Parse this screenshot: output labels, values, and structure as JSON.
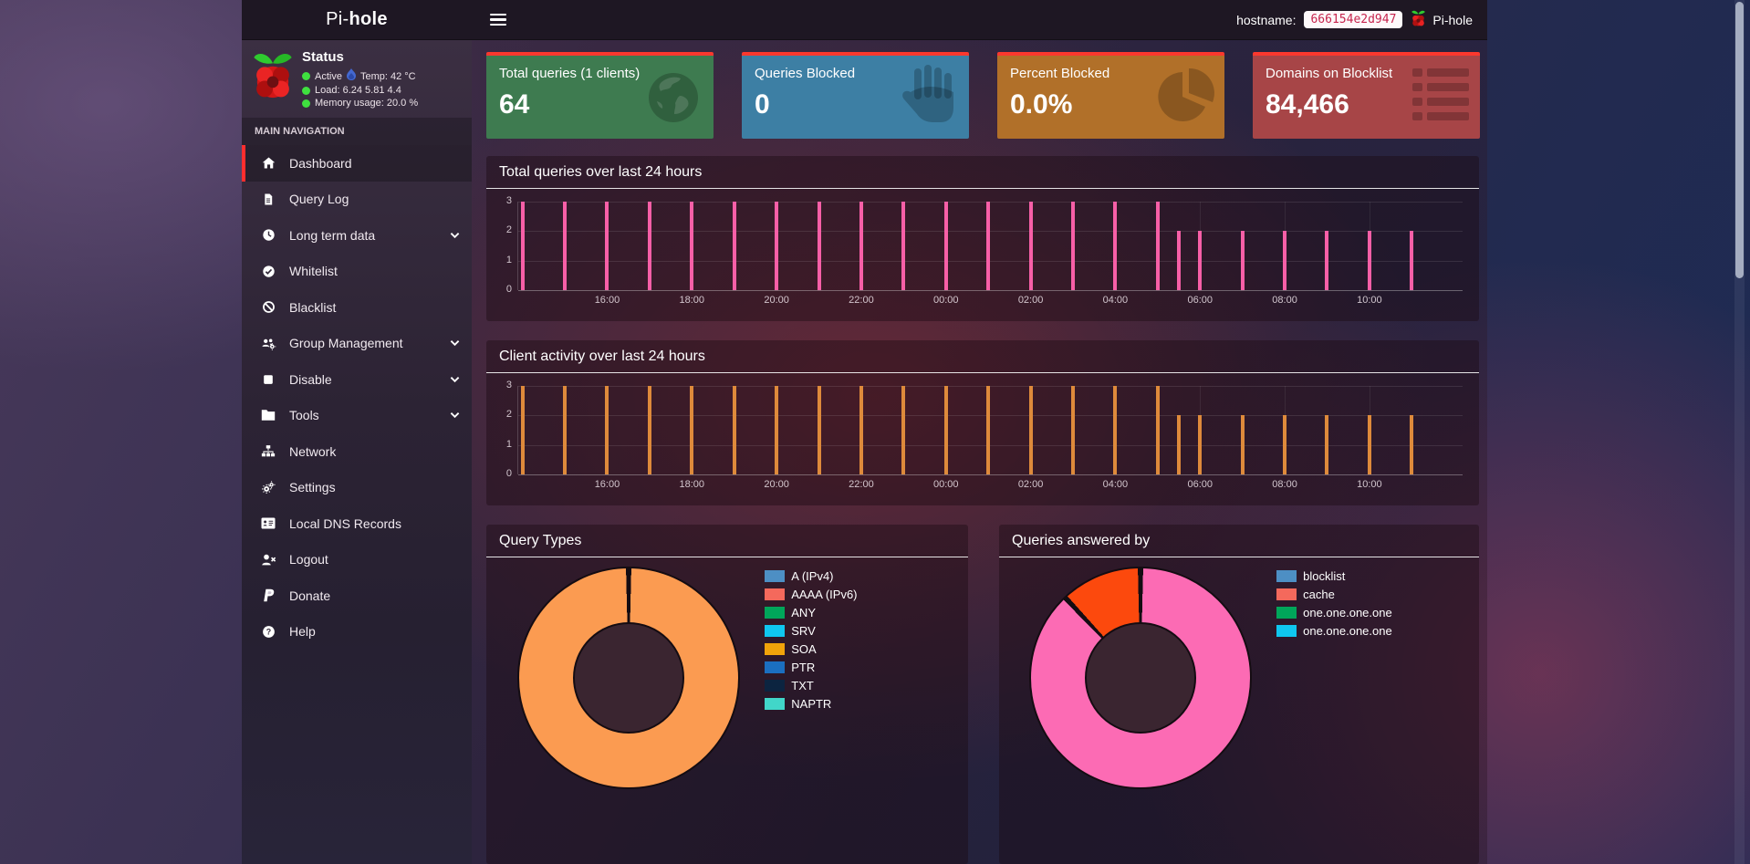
{
  "header": {
    "brand_prefix": "Pi-",
    "brand_suffix": "hole",
    "hostname_label": "hostname:",
    "hostname_value": "666154e2d947",
    "user_label": "Pi-hole"
  },
  "status": {
    "title": "Status",
    "active": "Active",
    "temp": "Temp: 42 °C",
    "load": "Load: 6.24  5.81  4.4",
    "memory": "Memory usage:  20.0 %"
  },
  "sidebar": {
    "section_label": "MAIN NAVIGATION",
    "items": [
      {
        "label": "Dashboard",
        "icon": "home",
        "active": true,
        "chevron": false
      },
      {
        "label": "Query Log",
        "icon": "file",
        "active": false,
        "chevron": false
      },
      {
        "label": "Long term data",
        "icon": "clock",
        "active": false,
        "chevron": true
      },
      {
        "label": "Whitelist",
        "icon": "check-circle",
        "active": false,
        "chevron": false
      },
      {
        "label": "Blacklist",
        "icon": "ban",
        "active": false,
        "chevron": false
      },
      {
        "label": "Group Management",
        "icon": "users-gear",
        "active": false,
        "chevron": true
      },
      {
        "label": "Disable",
        "icon": "stop",
        "active": false,
        "chevron": true
      },
      {
        "label": "Tools",
        "icon": "folder",
        "active": false,
        "chevron": true
      },
      {
        "label": "Network",
        "icon": "sitemap",
        "active": false,
        "chevron": false
      },
      {
        "label": "Settings",
        "icon": "gears",
        "active": false,
        "chevron": false
      },
      {
        "label": "Local DNS Records",
        "icon": "address-card",
        "active": false,
        "chevron": false
      },
      {
        "label": "Logout",
        "icon": "user-times",
        "active": false,
        "chevron": false
      },
      {
        "label": "Donate",
        "icon": "paypal",
        "active": false,
        "chevron": false
      },
      {
        "label": "Help",
        "icon": "question-circle",
        "active": false,
        "chevron": false
      }
    ]
  },
  "cards": [
    {
      "label": "Total queries (1 clients)",
      "value": "64",
      "bg": "#3e7b50",
      "icon": "globe"
    },
    {
      "label": "Queries Blocked",
      "value": "0",
      "bg": "#3d7fa4",
      "icon": "hand"
    },
    {
      "label": "Percent Blocked",
      "value": "0.0%",
      "bg": "#b17029",
      "icon": "pie"
    },
    {
      "label": "Domains on Blocklist",
      "value": "84,466",
      "bg": "#a74547",
      "icon": "list"
    }
  ],
  "chart_data": [
    {
      "type": "bar",
      "title": "Total queries over last 24 hours",
      "bar_color": "#f75fa7",
      "ylim": [
        0,
        3
      ],
      "yticks": [
        0,
        1,
        2,
        3
      ],
      "x_range": [
        13.9,
        36.2
      ],
      "x_ticks": [
        {
          "t": 16,
          "label": "16:00"
        },
        {
          "t": 18,
          "label": "18:00"
        },
        {
          "t": 20,
          "label": "20:00"
        },
        {
          "t": 22,
          "label": "22:00"
        },
        {
          "t": 24,
          "label": "00:00"
        },
        {
          "t": 26,
          "label": "02:00"
        },
        {
          "t": 28,
          "label": "04:00"
        },
        {
          "t": 30,
          "label": "06:00"
        },
        {
          "t": 32,
          "label": "08:00"
        },
        {
          "t": 34,
          "label": "10:00"
        }
      ],
      "bars": [
        [
          14,
          3
        ],
        [
          15,
          3
        ],
        [
          16,
          3
        ],
        [
          17,
          3
        ],
        [
          18,
          3
        ],
        [
          19,
          3
        ],
        [
          20,
          3
        ],
        [
          21,
          3
        ],
        [
          22,
          3
        ],
        [
          23,
          3
        ],
        [
          24,
          3
        ],
        [
          25,
          3
        ],
        [
          26,
          3
        ],
        [
          27,
          3
        ],
        [
          28,
          3
        ],
        [
          29,
          3
        ],
        [
          29.5,
          2
        ],
        [
          30,
          2
        ],
        [
          31,
          2
        ],
        [
          32,
          2
        ],
        [
          33,
          2
        ],
        [
          34,
          2
        ],
        [
          35,
          2
        ]
      ]
    },
    {
      "type": "bar",
      "title": "Client activity over last 24 hours",
      "bar_color": "#de8a3b",
      "ylim": [
        0,
        3
      ],
      "yticks": [
        0,
        1,
        2,
        3
      ],
      "x_range": [
        13.9,
        36.2
      ],
      "x_ticks": [
        {
          "t": 16,
          "label": "16:00"
        },
        {
          "t": 18,
          "label": "18:00"
        },
        {
          "t": 20,
          "label": "20:00"
        },
        {
          "t": 22,
          "label": "22:00"
        },
        {
          "t": 24,
          "label": "00:00"
        },
        {
          "t": 26,
          "label": "02:00"
        },
        {
          "t": 28,
          "label": "04:00"
        },
        {
          "t": 30,
          "label": "06:00"
        },
        {
          "t": 32,
          "label": "08:00"
        },
        {
          "t": 34,
          "label": "10:00"
        }
      ],
      "bars": [
        [
          14,
          3
        ],
        [
          15,
          3
        ],
        [
          16,
          3
        ],
        [
          17,
          3
        ],
        [
          18,
          3
        ],
        [
          19,
          3
        ],
        [
          20,
          3
        ],
        [
          21,
          3
        ],
        [
          22,
          3
        ],
        [
          23,
          3
        ],
        [
          24,
          3
        ],
        [
          25,
          3
        ],
        [
          26,
          3
        ],
        [
          27,
          3
        ],
        [
          28,
          3
        ],
        [
          29,
          3
        ],
        [
          29.5,
          2
        ],
        [
          30,
          2
        ],
        [
          31,
          2
        ],
        [
          32,
          2
        ],
        [
          33,
          2
        ],
        [
          34,
          2
        ],
        [
          35,
          2
        ]
      ]
    },
    {
      "type": "donut",
      "title": "Query Types",
      "slices": [
        {
          "pct": 100,
          "color": "#fb9b51"
        }
      ],
      "legend": [
        {
          "label": "A (IPv4)",
          "color": "#4d8fc4"
        },
        {
          "label": "AAAA (IPv6)",
          "color": "#f4695c"
        },
        {
          "label": "ANY",
          "color": "#00a65a"
        },
        {
          "label": "SRV",
          "color": "#0fc7ef"
        },
        {
          "label": "SOA",
          "color": "#f0a30a"
        },
        {
          "label": "PTR",
          "color": "#1b6fc0"
        },
        {
          "label": "TXT",
          "color": "#0c2440"
        },
        {
          "label": "NAPTR",
          "color": "#41d6c9"
        }
      ]
    },
    {
      "type": "donut",
      "title": "Queries answered by",
      "slices": [
        {
          "pct": 88,
          "color": "#fc6bb4"
        },
        {
          "pct": 12,
          "color": "#fc490d"
        }
      ],
      "legend": [
        {
          "label": "blocklist",
          "color": "#4d8fc4"
        },
        {
          "label": "cache",
          "color": "#f4695c"
        },
        {
          "label": "one.one.one.one",
          "color": "#00a65a"
        },
        {
          "label": "one.one.one.one",
          "color": "#0fc7ef"
        }
      ]
    }
  ]
}
